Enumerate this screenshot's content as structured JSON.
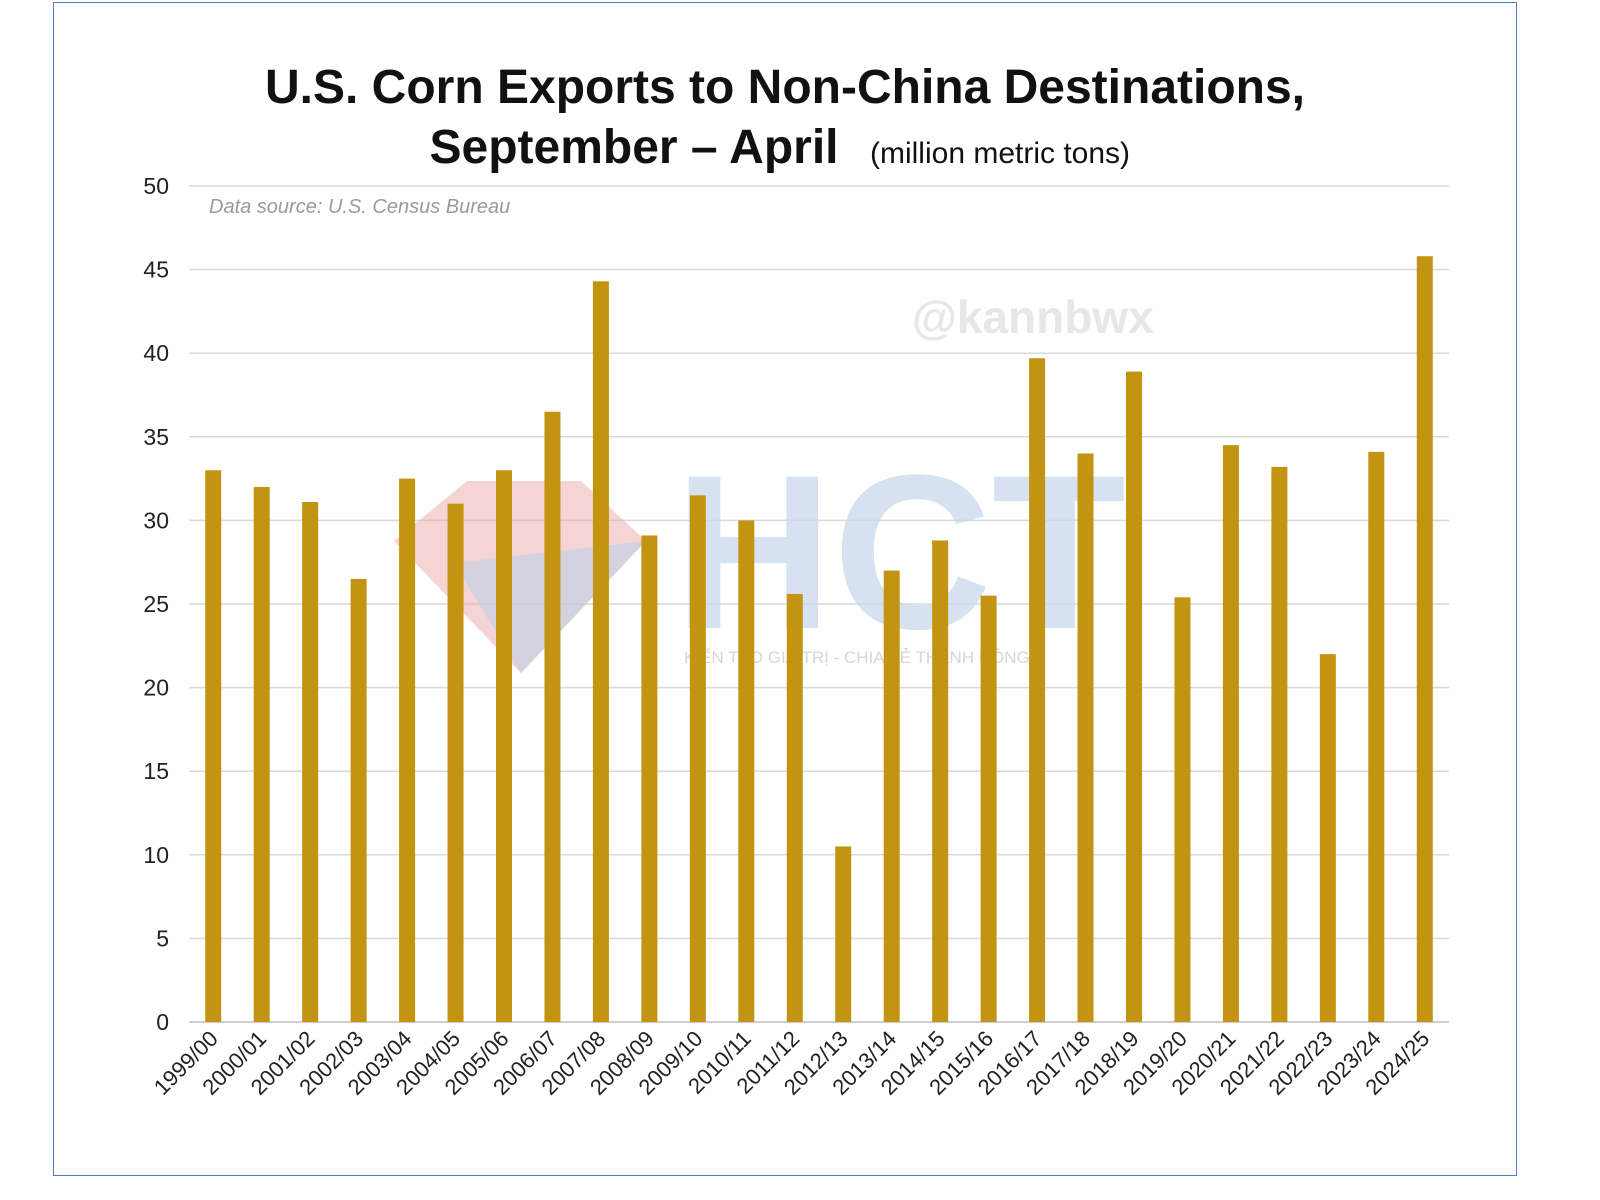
{
  "chart_data": {
    "type": "bar",
    "title_line1": "U.S. Corn Exports to Non-China Destinations,",
    "title_line2": "September – April",
    "title_unit": "(million metric tons)",
    "source_note": "Data source: U.S. Census Bureau",
    "categories": [
      "1999/00",
      "2000/01",
      "2001/02",
      "2002/03",
      "2003/04",
      "2004/05",
      "2005/06",
      "2006/07",
      "2007/08",
      "2008/09",
      "2009/10",
      "2010/11",
      "2011/12",
      "2012/13",
      "2013/14",
      "2014/15",
      "2015/16",
      "2016/17",
      "2017/18",
      "2018/19",
      "2019/20",
      "2020/21",
      "2021/22",
      "2022/23",
      "2023/24",
      "2024/25"
    ],
    "values": [
      33.0,
      32.0,
      31.1,
      26.5,
      32.5,
      31.0,
      33.0,
      36.5,
      44.3,
      29.1,
      31.5,
      30.0,
      25.6,
      10.5,
      27.0,
      28.8,
      25.5,
      39.7,
      34.0,
      38.9,
      25.4,
      34.5,
      33.2,
      22.0,
      34.1,
      45.8
    ],
    "xlabel": "",
    "ylabel": "",
    "ylim": [
      0,
      50
    ],
    "yticks": [
      0,
      5,
      10,
      15,
      20,
      25,
      30,
      35,
      40,
      45,
      50
    ],
    "grid": true,
    "legend": "none",
    "bar_color": "#c39312",
    "grid_color": "#d9d9d9"
  },
  "watermarks": {
    "handle": "@kannbwx",
    "logo_text": "HCT",
    "tagline": "KIẾN TẠO GIÁ TRỊ - CHIA SẺ THÀNH CÔNG"
  }
}
